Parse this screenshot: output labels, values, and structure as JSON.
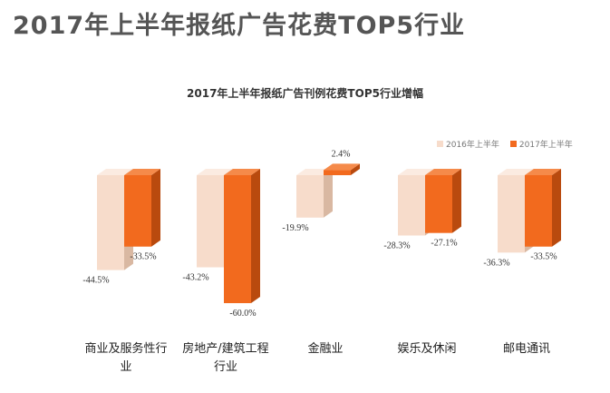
{
  "page": {
    "title": "2017年上半年报纸广告花费TOP5行业"
  },
  "chart_data": {
    "type": "bar",
    "title": "2017年上半年报纸广告刊例花费TOP5行业增幅",
    "categories": [
      "商业及服务性行业",
      "房地产/建筑工程行业",
      "金融业",
      "娱乐及休闲",
      "邮电通讯"
    ],
    "category_lines": [
      [
        "商业及服务性行",
        "业"
      ],
      [
        "房地产/建筑工程",
        "行业"
      ],
      [
        "金融业"
      ],
      [
        "娱乐及休闲"
      ],
      [
        "邮电通讯"
      ]
    ],
    "series": [
      {
        "name": "2016年上半年",
        "values": [
          -44.5,
          -43.2,
          -19.9,
          -28.3,
          -36.3
        ],
        "labels": [
          "-44.5%",
          "-43.2%",
          "-19.9%",
          "-28.3%",
          "-36.3%"
        ],
        "color": "#F7DCCB"
      },
      {
        "name": "2017年上半年",
        "values": [
          -33.5,
          -60.0,
          2.4,
          -27.1,
          -33.5
        ],
        "labels": [
          "-33.5%",
          "-60.0%",
          "2.4%",
          "-27.1%",
          "-33.5%"
        ],
        "color": "#F26A1E"
      }
    ],
    "ylim": [
      -62,
      5
    ],
    "legend_position": "top-right",
    "grid": false
  }
}
